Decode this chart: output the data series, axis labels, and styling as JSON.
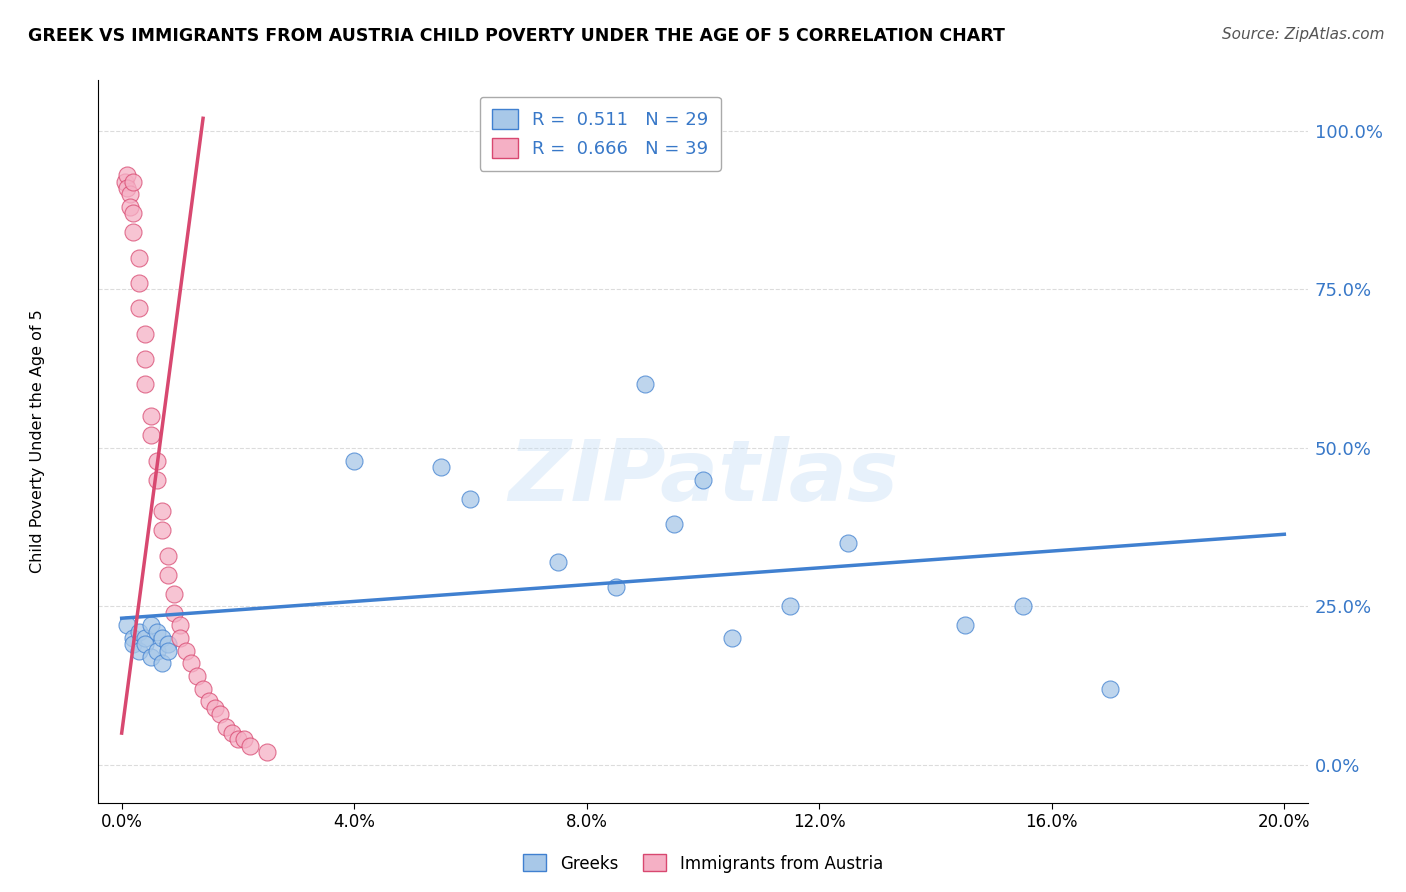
{
  "title": "GREEK VS IMMIGRANTS FROM AUSTRIA CHILD POVERTY UNDER THE AGE OF 5 CORRELATION CHART",
  "source": "Source: ZipAtlas.com",
  "ylabel": "Child Poverty Under the Age of 5",
  "legend_greek": "Greeks",
  "legend_austria": "Immigrants from Austria",
  "R_greek": 0.511,
  "N_greek": 29,
  "R_austria": 0.666,
  "N_austria": 39,
  "greek_color": "#a8c8e8",
  "austria_color": "#f5b0c5",
  "greek_line_color": "#4080d0",
  "austria_line_color": "#d84870",
  "stat_color": "#3878c8",
  "watermark": "ZIPatlas",
  "xlim": [
    0.0,
    0.2
  ],
  "ylim": [
    0.0,
    1.05
  ],
  "greek_x": [
    0.001,
    0.002,
    0.002,
    0.003,
    0.003,
    0.004,
    0.004,
    0.005,
    0.005,
    0.006,
    0.006,
    0.007,
    0.007,
    0.008,
    0.008,
    0.04,
    0.055,
    0.06,
    0.075,
    0.085,
    0.09,
    0.095,
    0.1,
    0.105,
    0.115,
    0.125,
    0.145,
    0.155,
    0.17
  ],
  "greek_y": [
    0.22,
    0.2,
    0.19,
    0.21,
    0.18,
    0.2,
    0.19,
    0.22,
    0.17,
    0.21,
    0.18,
    0.2,
    0.16,
    0.19,
    0.18,
    0.48,
    0.47,
    0.42,
    0.32,
    0.28,
    0.6,
    0.38,
    0.45,
    0.2,
    0.25,
    0.35,
    0.22,
    0.25,
    0.12
  ],
  "austria_x": [
    0.0005,
    0.001,
    0.001,
    0.0015,
    0.0015,
    0.002,
    0.002,
    0.002,
    0.003,
    0.003,
    0.003,
    0.004,
    0.004,
    0.004,
    0.005,
    0.005,
    0.006,
    0.006,
    0.007,
    0.007,
    0.008,
    0.008,
    0.009,
    0.009,
    0.01,
    0.01,
    0.011,
    0.012,
    0.013,
    0.014,
    0.015,
    0.016,
    0.017,
    0.018,
    0.019,
    0.02,
    0.021,
    0.022,
    0.025
  ],
  "austria_y": [
    0.92,
    0.93,
    0.91,
    0.9,
    0.88,
    0.92,
    0.87,
    0.84,
    0.8,
    0.76,
    0.72,
    0.68,
    0.64,
    0.6,
    0.55,
    0.52,
    0.48,
    0.45,
    0.4,
    0.37,
    0.33,
    0.3,
    0.27,
    0.24,
    0.22,
    0.2,
    0.18,
    0.16,
    0.14,
    0.12,
    0.1,
    0.09,
    0.08,
    0.06,
    0.05,
    0.04,
    0.04,
    0.03,
    0.02
  ]
}
